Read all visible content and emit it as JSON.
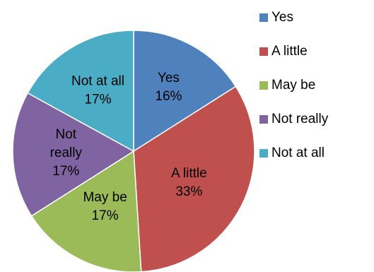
{
  "chart_data": {
    "type": "pie",
    "categories": [
      "Yes",
      "A little",
      "May be",
      "Not really",
      "Not at all"
    ],
    "values": [
      16,
      33,
      17,
      17,
      17
    ],
    "labels": [
      "16%",
      "33%",
      "17%",
      "17%",
      "17%"
    ],
    "slice_labels": [
      [
        "Yes"
      ],
      [
        "A little"
      ],
      [
        "May be"
      ],
      [
        "Not",
        "really"
      ],
      [
        "Not at all"
      ]
    ],
    "colors": [
      "#4F81BD",
      "#C0504D",
      "#9BBB59",
      "#8064A2",
      "#4BACC6"
    ],
    "legend": {
      "position": "right",
      "items": [
        "Yes",
        "A little",
        "May be",
        "Not really",
        "Not at all"
      ]
    }
  }
}
